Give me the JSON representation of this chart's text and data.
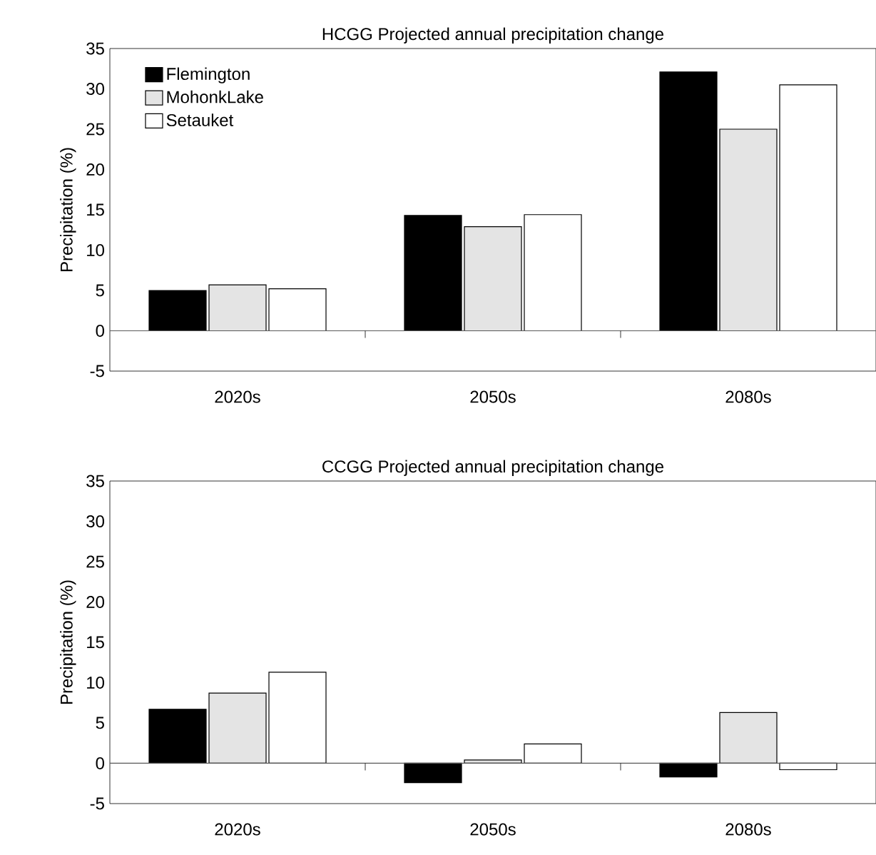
{
  "chart_data": [
    {
      "type": "bar",
      "title": "HCGG Projected annual precipitation change",
      "ylabel": "Precipitation (%)",
      "categories": [
        "2020s",
        "2050s",
        "2080s"
      ],
      "series": [
        {
          "name": "Flemington",
          "color": "#000000",
          "values": [
            5.0,
            14.3,
            32.1
          ]
        },
        {
          "name": "MohonkLake",
          "color": "#e4e4e4",
          "values": [
            5.7,
            12.9,
            25.0
          ]
        },
        {
          "name": "Setauket",
          "color": "#ffffff",
          "values": [
            5.2,
            14.4,
            30.5
          ]
        }
      ],
      "ylim": [
        -5,
        35
      ],
      "yticks": [
        -5,
        0,
        5,
        10,
        15,
        20,
        25,
        30,
        35
      ],
      "legend": "top left"
    },
    {
      "type": "bar",
      "title": "CCGG Projected annual precipitation change",
      "ylabel": "Precipitation (%)",
      "categories": [
        "2020s",
        "2050s",
        "2080s"
      ],
      "series": [
        {
          "color": "#000000",
          "values": [
            6.7,
            -2.4,
            -1.7
          ]
        },
        {
          "color": "#e4e4e4",
          "values": [
            8.7,
            0.4,
            6.3
          ]
        },
        {
          "color": "#ffffff",
          "values": [
            11.3,
            2.4,
            -0.8
          ]
        }
      ],
      "ylim": [
        -5,
        35
      ],
      "yticks": [
        -5,
        0,
        5,
        10,
        15,
        20,
        25,
        30,
        35
      ]
    }
  ]
}
